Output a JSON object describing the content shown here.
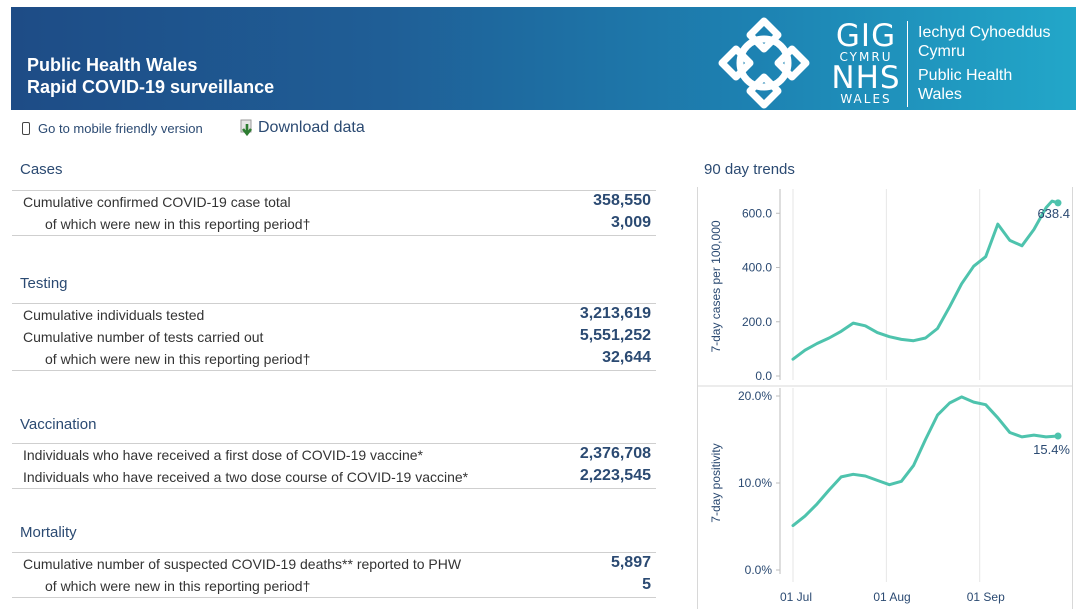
{
  "header": {
    "title_line1": "Public Health Wales",
    "title_line2": "Rapid COVID-19 surveillance",
    "logo": {
      "gig": "GIG",
      "cymru": "CYMRU",
      "nhs": "NHS",
      "wales": "WALES",
      "welsh_name_1": "Iechyd Cyhoeddus",
      "welsh_name_2": "Cymru",
      "english_name_1": "Public Health",
      "english_name_2": "Wales"
    }
  },
  "toolbar": {
    "mobile_label": "Go to mobile friendly version",
    "download_label": "Download data"
  },
  "sections": {
    "cases": {
      "heading": "Cases",
      "rows": [
        {
          "label": "Cumulative confirmed COVID-19 case total",
          "value": "358,550"
        },
        {
          "label": "of which were new in this reporting period†",
          "value": "3,009"
        }
      ]
    },
    "testing": {
      "heading": "Testing",
      "rows": [
        {
          "label": "Cumulative individuals tested",
          "value": "3,213,619"
        },
        {
          "label": "Cumulative number of tests carried out",
          "value": "5,551,252"
        },
        {
          "label": "of which were new in this reporting period†",
          "value": "32,644"
        }
      ]
    },
    "vaccination": {
      "heading": "Vaccination",
      "rows": [
        {
          "label": "Individuals who have received a first dose of COVID-19 vaccine*",
          "value": "2,376,708"
        },
        {
          "label": "Individuals who have received a two dose course of COVID-19 vaccine*",
          "value": "2,223,545"
        }
      ]
    },
    "mortality": {
      "heading": "Mortality",
      "rows": [
        {
          "label": "Cumulative number of suspected COVID-19 deaths** reported to PHW",
          "value": "5,897"
        },
        {
          "label": "of which were new in this reporting period†",
          "value": "5"
        }
      ]
    }
  },
  "trends": {
    "title": "90 day trends"
  },
  "colors": {
    "line": "#4ec3ad",
    "accent": "#2b4a72",
    "header_start": "#1e4c86",
    "header_end": "#22a7c9"
  },
  "chart_data": [
    {
      "type": "line",
      "title": "",
      "ylabel": "7-day cases per 100,000",
      "xlabel": "",
      "ylim": [
        0,
        660
      ],
      "yticks": [
        0,
        200,
        400,
        600
      ],
      "ytick_labels": [
        "0.0",
        "200.0",
        "400.0",
        "600.0"
      ],
      "last_label": "638.4",
      "x_day": [
        0,
        4,
        8,
        12,
        16,
        20,
        24,
        28,
        32,
        36,
        40,
        44,
        48,
        52,
        56,
        60,
        64,
        68,
        72,
        76,
        80,
        84,
        86,
        88
      ],
      "values": [
        62,
        95,
        120,
        140,
        165,
        195,
        185,
        160,
        145,
        135,
        130,
        140,
        175,
        255,
        340,
        405,
        440,
        560,
        500,
        480,
        540,
        620,
        645,
        638.4
      ]
    },
    {
      "type": "line",
      "title": "",
      "ylabel": "7-day positivity",
      "xlabel": "",
      "ylim": [
        0,
        20
      ],
      "yticks": [
        0,
        10,
        20
      ],
      "ytick_labels": [
        "0.0%",
        "10.0%",
        "20.0%"
      ],
      "last_label": "15.4%",
      "x_tick_days": [
        0,
        31,
        62
      ],
      "x_tick_labels": [
        "01 Jul",
        "01 Aug",
        "01 Sep"
      ],
      "x_day": [
        0,
        4,
        8,
        12,
        16,
        20,
        24,
        28,
        32,
        36,
        40,
        44,
        48,
        52,
        56,
        60,
        64,
        68,
        72,
        76,
        80,
        84,
        88
      ],
      "values": [
        5.1,
        6.2,
        7.6,
        9.2,
        10.7,
        11.0,
        10.8,
        10.3,
        9.8,
        10.2,
        12.0,
        15.0,
        17.8,
        19.2,
        19.9,
        19.3,
        19.0,
        17.5,
        15.8,
        15.3,
        15.5,
        15.3,
        15.4
      ]
    }
  ]
}
